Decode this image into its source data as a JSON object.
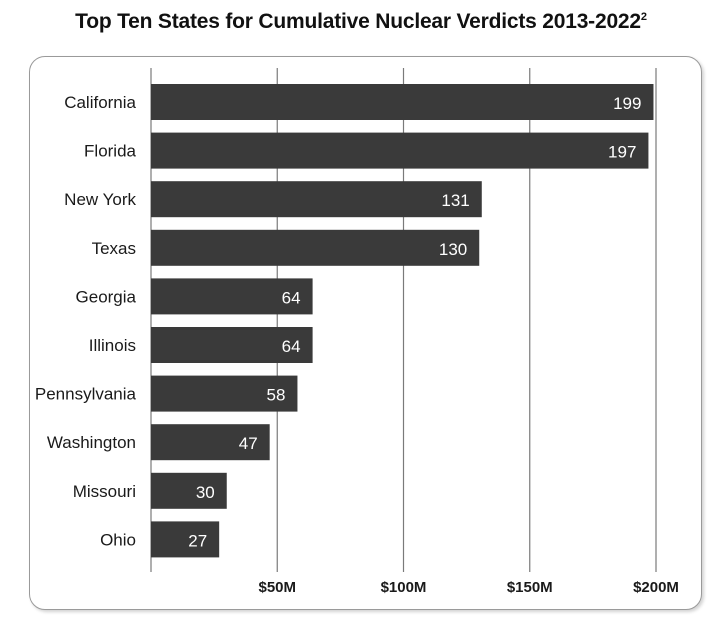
{
  "title": "Top Ten States for Cumulative Nuclear Verdicts 2013-2022",
  "title_footnote": "2",
  "colors": {
    "bar": "#3a3a3a",
    "gridline": "#7a7a7a",
    "panel_border": "#9a9a9a"
  },
  "chart_data": {
    "type": "bar",
    "orientation": "horizontal",
    "title": "Top Ten States for Cumulative Nuclear Verdicts 2013-2022",
    "categories": [
      "California",
      "Florida",
      "New York",
      "Texas",
      "Georgia",
      "Illinois",
      "Pennsylvania",
      "Washington",
      "Missouri",
      "Ohio"
    ],
    "values": [
      199,
      197,
      131,
      130,
      64,
      64,
      58,
      47,
      30,
      27
    ],
    "data_labels": [
      "199",
      "197",
      "131",
      "130",
      "64",
      "64",
      "58",
      "47",
      "30",
      "27"
    ],
    "x_ticks": [
      50,
      100,
      150,
      200
    ],
    "x_tick_labels": [
      "$50M",
      "$100M",
      "$150M",
      "$200M"
    ],
    "xlim": [
      0,
      200
    ],
    "xlabel": "",
    "ylabel": "",
    "grid": true
  }
}
